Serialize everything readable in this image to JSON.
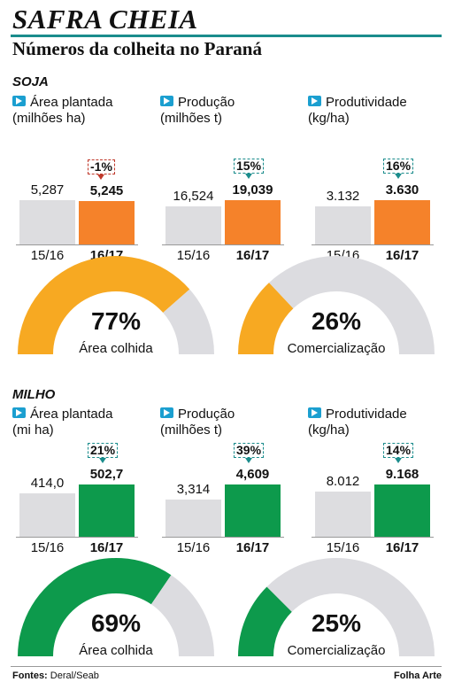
{
  "header": {
    "title": "SAFRA CHEIA",
    "subtitle": "Números da colheita no Paraná"
  },
  "colors": {
    "soja_accent": "#f5822a",
    "milho_accent": "#0d9a4c",
    "previous_bar": "#dddde0",
    "soja_gauge_fill": "#f7a922",
    "gauge_remaining": "#dcdce0",
    "badge_border": "#1a8c8c",
    "icon_blue": "#1b9fd0"
  },
  "icons": {
    "label_marker": "arrow-right-icon"
  },
  "soja": {
    "section_label": "SOJA",
    "metrics": [
      {
        "label_line1": "Área plantada",
        "label_line2": "(milhões ha)",
        "prev_value_label": "5,287",
        "curr_value_label": "5,245",
        "change_label": "-1%",
        "change_negative": true,
        "prev_year": "15/16",
        "curr_year": "16/17"
      },
      {
        "label_line1": "Produção",
        "label_line2": "(milhões t)",
        "prev_value_label": "16,524",
        "curr_value_label": "19,039",
        "change_label": "15%",
        "change_negative": false,
        "prev_year": "15/16",
        "curr_year": "16/17"
      },
      {
        "label_line1": "Produtividade",
        "label_line2": "(kg/ha)",
        "prev_value_label": "3.132",
        "curr_value_label": "3.630",
        "change_label": "16%",
        "change_negative": false,
        "prev_year": "15/16",
        "curr_year": "16/17"
      }
    ],
    "gauges": [
      {
        "percent_label": "77%",
        "label": "Área colhida"
      },
      {
        "percent_label": "26%",
        "label": "Comercialização"
      }
    ]
  },
  "milho": {
    "section_label": "MILHO",
    "metrics": [
      {
        "label_line1": "Área plantada",
        "label_line2": "(mi ha)",
        "prev_value_label": "414,0",
        "curr_value_label": "502,7",
        "change_label": "21%",
        "change_negative": false,
        "prev_year": "15/16",
        "curr_year": "16/17"
      },
      {
        "label_line1": "Produção",
        "label_line2": "(milhões t)",
        "prev_value_label": "3,314",
        "curr_value_label": "4,609",
        "change_label": "39%",
        "change_negative": false,
        "prev_year": "15/16",
        "curr_year": "16/17"
      },
      {
        "label_line1": "Produtividade",
        "label_line2": "(kg/ha)",
        "prev_value_label": "8.012",
        "curr_value_label": "9.168",
        "change_label": "14%",
        "change_negative": false,
        "prev_year": "15/16",
        "curr_year": "16/17"
      }
    ],
    "gauges": [
      {
        "percent_label": "69%",
        "label": "Área colhida"
      },
      {
        "percent_label": "25%",
        "label": "Comercialização"
      }
    ]
  },
  "footer": {
    "source_label": "Fontes:",
    "source_value": "Deral/Seab",
    "credit": "Folha Arte"
  },
  "chart_data": [
    {
      "type": "bar",
      "title": "SOJA — Área plantada",
      "ylabel": "(milhões ha)",
      "categories": [
        "15/16",
        "16/17"
      ],
      "values": [
        5.287,
        5.245
      ],
      "change_percent": -1
    },
    {
      "type": "bar",
      "title": "SOJA — Produção",
      "ylabel": "(milhões t)",
      "categories": [
        "15/16",
        "16/17"
      ],
      "values": [
        16.524,
        19.039
      ],
      "change_percent": 15
    },
    {
      "type": "bar",
      "title": "SOJA — Produtividade",
      "ylabel": "(kg/ha)",
      "categories": [
        "15/16",
        "16/17"
      ],
      "values": [
        3132,
        3630
      ],
      "change_percent": 16
    },
    {
      "type": "pie",
      "title": "SOJA — Área colhida",
      "style": "half-donut gauge",
      "categories": [
        "Área colhida",
        "restante"
      ],
      "values": [
        77,
        23
      ]
    },
    {
      "type": "pie",
      "title": "SOJA — Comercialização",
      "style": "half-donut gauge",
      "categories": [
        "Comercialização",
        "restante"
      ],
      "values": [
        26,
        74
      ]
    },
    {
      "type": "bar",
      "title": "MILHO — Área plantada",
      "ylabel": "(mi ha)",
      "categories": [
        "15/16",
        "16/17"
      ],
      "values": [
        414.0,
        502.7
      ],
      "change_percent": 21
    },
    {
      "type": "bar",
      "title": "MILHO — Produção",
      "ylabel": "(milhões t)",
      "categories": [
        "15/16",
        "16/17"
      ],
      "values": [
        3.314,
        4.609
      ],
      "change_percent": 39
    },
    {
      "type": "bar",
      "title": "MILHO — Produtividade",
      "ylabel": "(kg/ha)",
      "categories": [
        "15/16",
        "16/17"
      ],
      "values": [
        8012,
        9168
      ],
      "change_percent": 14
    },
    {
      "type": "pie",
      "title": "MILHO — Área colhida",
      "style": "half-donut gauge",
      "categories": [
        "Área colhida",
        "restante"
      ],
      "values": [
        69,
        31
      ]
    },
    {
      "type": "pie",
      "title": "MILHO — Comercialização",
      "style": "half-donut gauge",
      "categories": [
        "Comercialização",
        "restante"
      ],
      "values": [
        25,
        75
      ]
    }
  ]
}
